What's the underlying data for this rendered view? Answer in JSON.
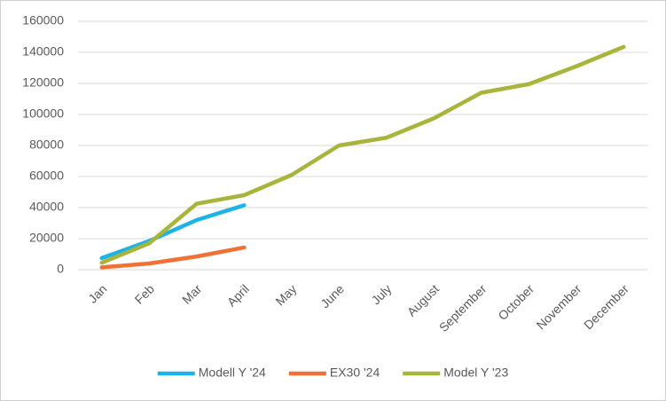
{
  "chart_data": {
    "type": "line",
    "categories": [
      "Jan",
      "Feb",
      "Mar",
      "April",
      "May",
      "June",
      "July",
      "August",
      "September",
      "October",
      "November",
      "December"
    ],
    "series": [
      {
        "name": "Modell Y '24",
        "color": "#1cb4e8",
        "values": [
          7500,
          18500,
          32000,
          41500,
          null,
          null,
          null,
          null,
          null,
          null,
          null,
          null
        ]
      },
      {
        "name": "EX30 '24",
        "color": "#f07035",
        "values": [
          1500,
          4000,
          8500,
          14300,
          null,
          null,
          null,
          null,
          null,
          null,
          null,
          null
        ]
      },
      {
        "name": "Model Y '23",
        "color": "#a9b43a",
        "values": [
          4500,
          17000,
          42500,
          48000,
          61000,
          80000,
          85000,
          97500,
          114000,
          119500,
          131000,
          143500
        ]
      }
    ],
    "ylim": [
      0,
      160000
    ],
    "yticks": [
      0,
      20000,
      40000,
      60000,
      80000,
      100000,
      120000,
      140000,
      160000
    ],
    "grid": true,
    "legend": "bottom"
  }
}
